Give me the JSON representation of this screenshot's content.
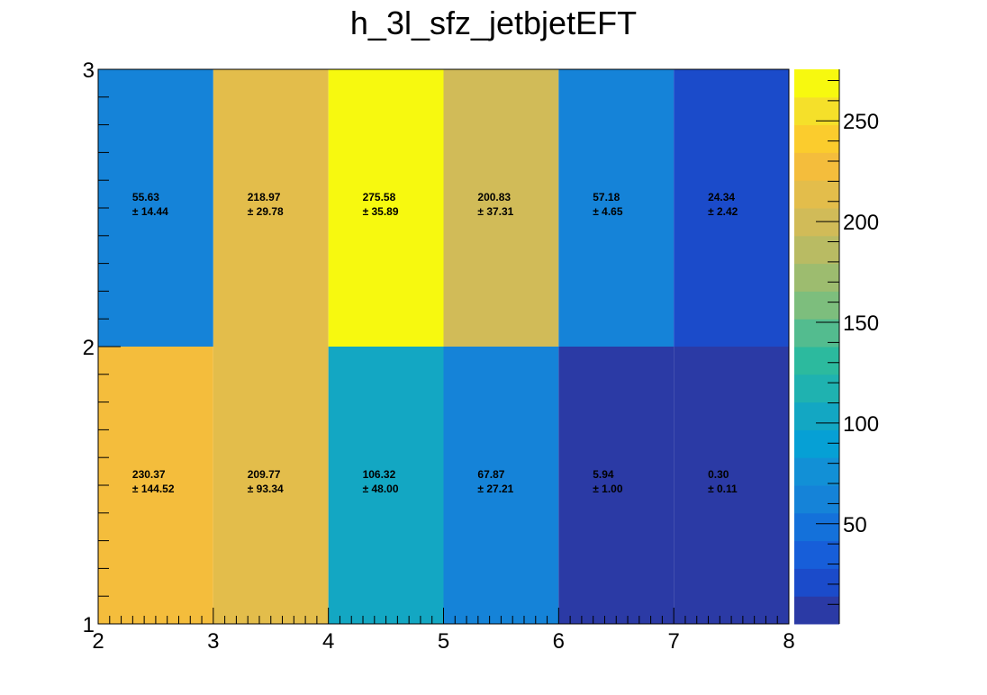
{
  "chart_data": {
    "type": "heatmap",
    "title": "h_3l_sfz_jetbjetEFT",
    "xlabel": "",
    "ylabel": "",
    "xlim": [
      2,
      8
    ],
    "ylim": [
      1,
      3
    ],
    "x_edges": [
      2,
      3,
      4,
      5,
      6,
      7,
      8
    ],
    "y_edges": [
      1,
      2,
      3
    ],
    "x_ticks": [
      "2",
      "3",
      "4",
      "5",
      "6",
      "7",
      "8"
    ],
    "y_ticks": [
      "1",
      "2",
      "3"
    ],
    "grid": false,
    "cells": [
      {
        "x": 2.5,
        "y": 1.5,
        "value": 230.37,
        "value_label": "230.37",
        "error_label": "± 144.52"
      },
      {
        "x": 3.5,
        "y": 1.5,
        "value": 209.77,
        "value_label": "209.77",
        "error_label": "± 93.34"
      },
      {
        "x": 4.5,
        "y": 1.5,
        "value": 106.32,
        "value_label": "106.32",
        "error_label": "± 48.00"
      },
      {
        "x": 5.5,
        "y": 1.5,
        "value": 67.87,
        "value_label": "67.87",
        "error_label": "± 27.21"
      },
      {
        "x": 6.5,
        "y": 1.5,
        "value": 5.94,
        "value_label": "5.94",
        "error_label": "± 1.00"
      },
      {
        "x": 7.5,
        "y": 1.5,
        "value": 0.3,
        "value_label": "0.30",
        "error_label": "± 0.11"
      },
      {
        "x": 2.5,
        "y": 2.5,
        "value": 55.63,
        "value_label": "55.63",
        "error_label": "± 14.44"
      },
      {
        "x": 3.5,
        "y": 2.5,
        "value": 218.97,
        "value_label": "218.97",
        "error_label": "± 29.78"
      },
      {
        "x": 4.5,
        "y": 2.5,
        "value": 275.58,
        "value_label": "275.58",
        "error_label": "± 35.89"
      },
      {
        "x": 5.5,
        "y": 2.5,
        "value": 200.83,
        "value_label": "200.83",
        "error_label": "± 37.31"
      },
      {
        "x": 6.5,
        "y": 2.5,
        "value": 57.18,
        "value_label": "57.18",
        "error_label": "± 4.65"
      },
      {
        "x": 7.5,
        "y": 2.5,
        "value": 24.34,
        "value_label": "24.34",
        "error_label": "± 2.42"
      }
    ],
    "colorbar": {
      "range": [
        0.3,
        275.58
      ],
      "ticks": [
        {
          "value": 50,
          "label": "50"
        },
        {
          "value": 100,
          "label": "100"
        },
        {
          "value": 150,
          "label": "150"
        },
        {
          "value": 200,
          "label": "200"
        },
        {
          "value": 250,
          "label": "250"
        }
      ],
      "bands": [
        "#2b3aa5",
        "#1b4bca",
        "#175ed9",
        "#1471da",
        "#1583d8",
        "#1290d6",
        "#06a0d5",
        "#13a7c3",
        "#1fb2b0",
        "#2cba9e",
        "#53bc8f",
        "#7dbe7d",
        "#9dbc6f",
        "#b9bb63",
        "#d1bb58",
        "#e3bd4b",
        "#f4bd3c",
        "#fbcc2d",
        "#f5e02a",
        "#f7f90f"
      ],
      "min_color": "#2b3aa5",
      "max_color": "#f7f90f"
    }
  }
}
